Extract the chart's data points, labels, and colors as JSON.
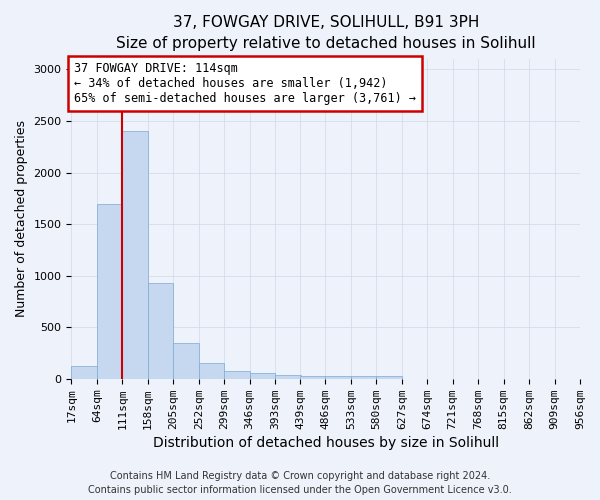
{
  "title_line1": "37, FOWGAY DRIVE, SOLIHULL, B91 3PH",
  "title_line2": "Size of property relative to detached houses in Solihull",
  "xlabel": "Distribution of detached houses by size in Solihull",
  "ylabel": "Number of detached properties",
  "annotation_title": "37 FOWGAY DRIVE: 114sqm",
  "annotation_line2": "← 34% of detached houses are smaller (1,942)",
  "annotation_line3": "65% of semi-detached houses are larger (3,761) →",
  "footer_line1": "Contains HM Land Registry data © Crown copyright and database right 2024.",
  "footer_line2": "Contains public sector information licensed under the Open Government Licence v3.0.",
  "bar_left_edges": [
    17,
    64,
    111,
    158,
    205,
    252,
    299,
    346,
    393,
    439,
    486,
    533,
    580,
    627,
    674,
    721,
    768,
    815,
    862,
    909
  ],
  "bar_heights": [
    120,
    1700,
    2400,
    930,
    350,
    150,
    75,
    55,
    40,
    30,
    25,
    30,
    25,
    0,
    0,
    0,
    0,
    0,
    0,
    0
  ],
  "bin_width": 47,
  "bar_color": "#c5d8f0",
  "bar_edge_color": "#7aaad4",
  "grid_color": "#d0d8e8",
  "vline_x": 111,
  "vline_color": "#cc0000",
  "annotation_box_color": "#cc0000",
  "annotation_box_fill": "#ffffff",
  "ylim": [
    0,
    3100
  ],
  "yticks": [
    0,
    500,
    1000,
    1500,
    2000,
    2500,
    3000
  ],
  "tick_labels": [
    "17sqm",
    "64sqm",
    "111sqm",
    "158sqm",
    "205sqm",
    "252sqm",
    "299sqm",
    "346sqm",
    "393sqm",
    "439sqm",
    "486sqm",
    "533sqm",
    "580sqm",
    "627sqm",
    "674sqm",
    "721sqm",
    "768sqm",
    "815sqm",
    "862sqm",
    "909sqm",
    "956sqm"
  ],
  "background_color": "#eef2fa",
  "plot_bg_color": "#eef2fa",
  "title_fontsize": 11,
  "subtitle_fontsize": 10,
  "ylabel_fontsize": 9,
  "xlabel_fontsize": 10,
  "tick_fontsize": 8,
  "annotation_fontsize": 8.5,
  "footer_fontsize": 7
}
